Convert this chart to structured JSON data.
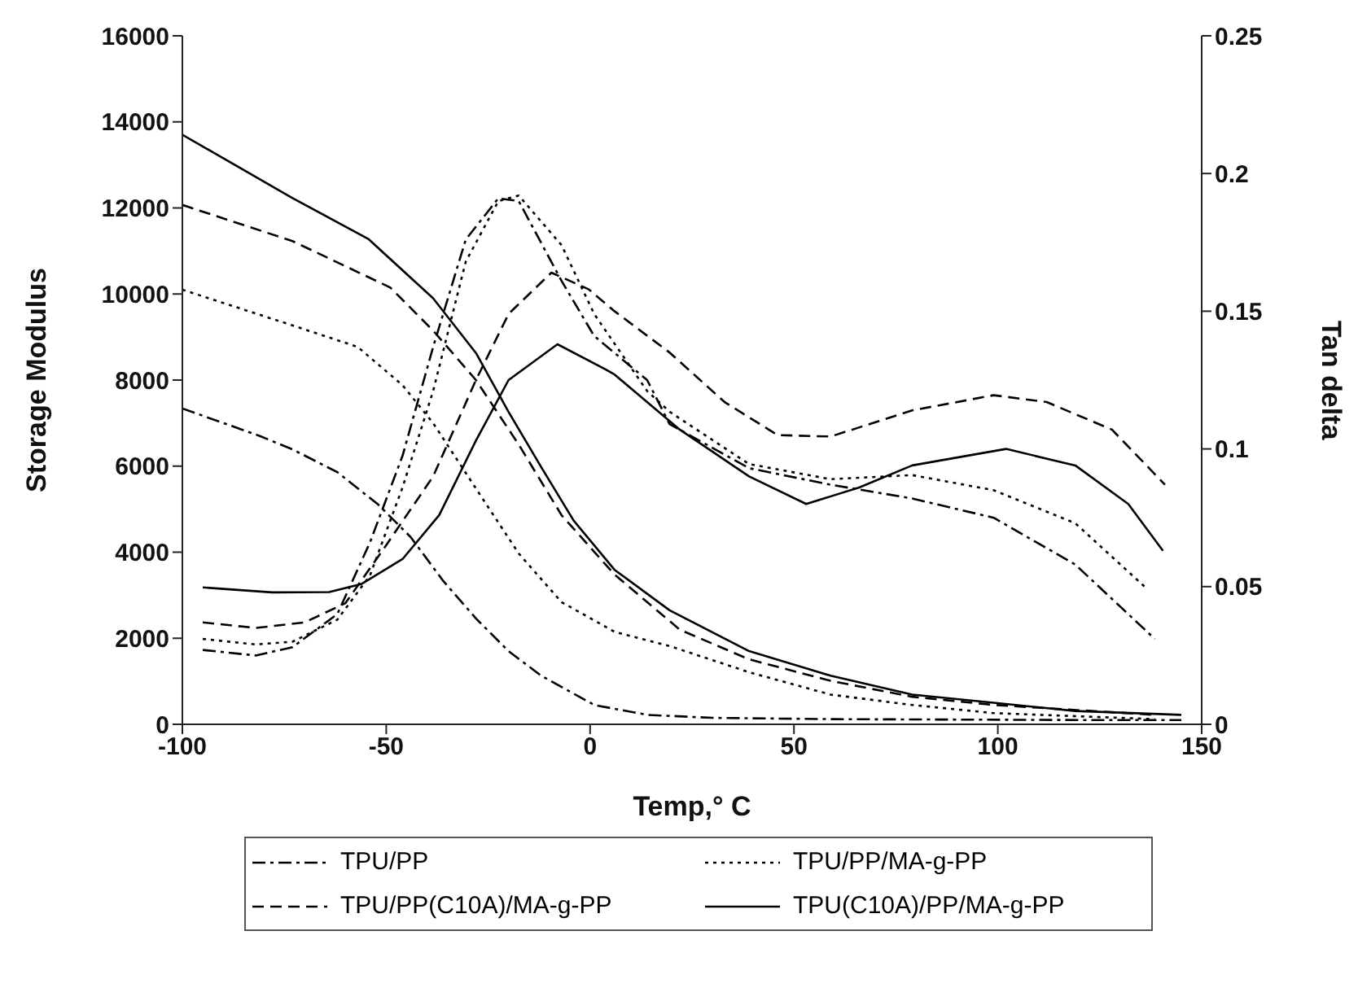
{
  "chart_data": {
    "type": "line",
    "xlabel": "Temp,° C",
    "ylabel": "Storage Modulus",
    "y2label": "Tan delta",
    "xlim": [
      -100,
      150
    ],
    "xticks": [
      -100,
      -50,
      0,
      50,
      100,
      150
    ],
    "ylim": [
      0,
      16000
    ],
    "yticks": [
      0,
      2000,
      4000,
      6000,
      8000,
      10000,
      12000,
      14000,
      16000
    ],
    "y2lim": [
      0,
      0.25
    ],
    "y2ticks": [
      0,
      0.05,
      0.1,
      0.15,
      0.2,
      0.25
    ],
    "legend": "bottom",
    "marker": "none",
    "series": [
      {
        "name": "TPU/PP",
        "color": "#000000",
        "line_style": "dashdot",
        "x": [
          -100,
          -81,
          -73,
          -62,
          -52,
          -44,
          -36,
          -28,
          -20,
          -12,
          1,
          14,
          30,
          60,
          90,
          120,
          145
        ],
        "values": [
          7340,
          6700,
          6390,
          5860,
          5110,
          4350,
          3330,
          2460,
          1700,
          1130,
          450,
          220,
          150,
          120,
          110,
          100,
          100
        ]
      },
      {
        "name": "TPU/PP/MA-g-PP",
        "color": "#000000",
        "line_style": "dotted",
        "x": [
          -100,
          -73,
          -57,
          -46,
          -38.5,
          -28,
          -17.5,
          -7,
          6,
          19.5,
          39,
          59,
          79,
          99,
          138.5
        ],
        "values": [
          10100,
          9270,
          8770,
          7880,
          7000,
          5480,
          3970,
          2840,
          2150,
          1820,
          1210,
          690,
          450,
          260,
          120
        ]
      },
      {
        "name": "TPU/PP(C10A)/MA-g-PP",
        "color": "#000000",
        "line_style": "dashed",
        "x": [
          -100,
          -73,
          -49,
          -38.5,
          -28,
          -17.5,
          -7,
          6,
          22,
          39,
          59,
          79,
          99,
          138.5
        ],
        "values": [
          12070,
          11230,
          10150,
          9150,
          8000,
          6500,
          4860,
          3480,
          2200,
          1510,
          1010,
          640,
          450,
          220
        ]
      },
      {
        "name": "TPU(C10A)/PP/MA-g-PP",
        "color": "#000000",
        "line_style": "solid",
        "x": [
          -100,
          -73,
          -54.4,
          -38.5,
          -28,
          -20,
          -12,
          -4,
          6,
          19.5,
          39,
          59,
          79,
          99,
          119,
          145
        ],
        "values": [
          13700,
          12230,
          11280,
          9900,
          8630,
          7260,
          5980,
          4730,
          3590,
          2650,
          1700,
          1130,
          690,
          500,
          310,
          220
        ]
      },
      {
        "color": "#000000",
        "line_style": "dashdot",
        "axis": "y2",
        "x": [
          -95,
          -82,
          -73,
          -62,
          -54,
          -46,
          -38.5,
          -30.5,
          -22.5,
          -17.5,
          -7,
          1,
          14,
          19.5,
          39,
          59,
          79,
          99,
          119,
          138.5
        ],
        "values": [
          0.027,
          0.025,
          0.028,
          0.04,
          0.066,
          0.0975,
          0.137,
          0.176,
          0.191,
          0.19,
          0.161,
          0.141,
          0.125,
          0.109,
          0.093,
          0.087,
          0.082,
          0.075,
          0.058,
          0.031
        ]
      },
      {
        "color": "#000000",
        "line_style": "dotted",
        "axis": "y2",
        "x": [
          -95,
          -82,
          -73,
          -62,
          -54,
          -46,
          -38.5,
          -30.5,
          -22.5,
          -17.5,
          -7,
          1,
          14,
          19.5,
          39,
          59,
          79,
          99,
          119,
          136
        ],
        "values": [
          0.031,
          0.029,
          0.03,
          0.038,
          0.054,
          0.086,
          0.121,
          0.168,
          0.19,
          0.192,
          0.174,
          0.149,
          0.121,
          0.1135,
          0.0945,
          0.089,
          0.0905,
          0.085,
          0.073,
          0.05
        ]
      },
      {
        "color": "#000000",
        "line_style": "dashed",
        "axis": "y2",
        "x": [
          -95,
          -82,
          -70,
          -60,
          -50.5,
          -38.5,
          -28,
          -20,
          -9.5,
          -0.4,
          6,
          19.5,
          33,
          46,
          59,
          79,
          99,
          112,
          128,
          141
        ],
        "values": [
          0.037,
          0.035,
          0.037,
          0.044,
          0.064,
          0.09,
          0.125,
          0.149,
          0.164,
          0.158,
          0.15,
          0.135,
          0.117,
          0.105,
          0.1045,
          0.114,
          0.1195,
          0.117,
          0.107,
          0.087
        ]
      },
      {
        "color": "#000000",
        "line_style": "solid",
        "axis": "y2",
        "x": [
          -95,
          -78,
          -64,
          -56,
          -46,
          -37,
          -28,
          -20,
          -8,
          3.6,
          6,
          22,
          39,
          53,
          66,
          79,
          102,
          119,
          132,
          140.5
        ],
        "values": [
          0.0497,
          0.0479,
          0.048,
          0.051,
          0.06,
          0.076,
          0.103,
          0.125,
          0.138,
          0.129,
          0.127,
          0.107,
          0.09,
          0.08,
          0.086,
          0.094,
          0.1,
          0.094,
          0.08,
          0.063
        ]
      }
    ]
  }
}
